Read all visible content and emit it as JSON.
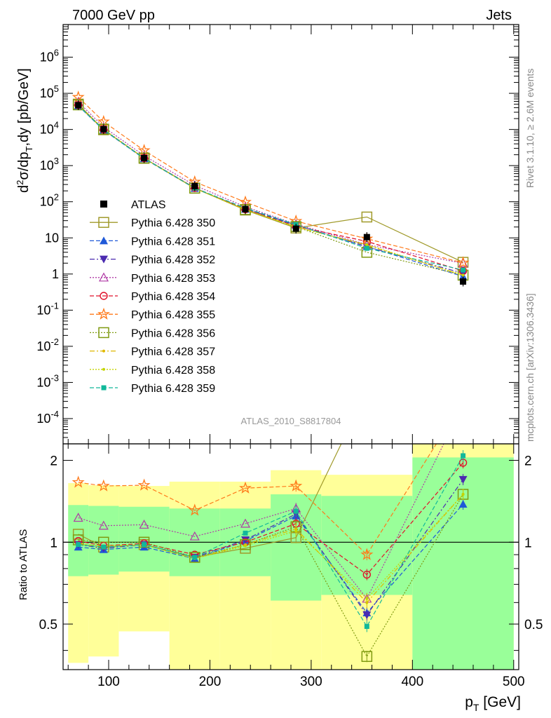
{
  "header": {
    "left": "7000 GeV pp",
    "right": "Jets"
  },
  "side_labels": {
    "top": "Rivet 3.1.10, ≥ 2.6M events",
    "bottom": "mcplots.cern.ch [arXiv:1306.3436]"
  },
  "analysis_tag": "ATLAS_2010_S8817804",
  "chart_data": [
    {
      "type": "line",
      "panel": "main",
      "ylabel": "d²σ/dp_T,dy [pb/GeV]",
      "yscale": "log",
      "ylim": [
        2e-05,
        8000000
      ],
      "xlim": [
        55,
        505
      ],
      "y_tick_labels": [
        "10^6",
        "10^5",
        "10^4",
        "10^3",
        "10^2",
        "10",
        "1",
        "10^-1",
        "10^-2",
        "10^-3",
        "10^-4"
      ],
      "x": [
        70,
        95,
        135,
        185,
        235,
        285,
        355,
        450
      ],
      "data": {
        "name": "ATLAS",
        "values": [
          47000,
          10200,
          1620,
          270,
          62,
          18,
          10.5,
          0.62
        ]
      },
      "series": [
        {
          "name": "Pythia 6.428 350",
          "color": "#a09a2a",
          "style": "solid",
          "marker": "open-square",
          "ratio": [
            1.07,
            0.96,
            0.98,
            0.88,
            0.95,
            1.04,
            3.6,
            3.4
          ]
        },
        {
          "name": "Pythia 6.428 351",
          "color": "#1f59d8",
          "style": "dashed",
          "marker": "triangle-up",
          "ratio": [
            0.96,
            0.94,
            0.96,
            0.87,
            1.01,
            1.25,
            0.55,
            1.38
          ]
        },
        {
          "name": "Pythia 6.428 352",
          "color": "#4b2bb0",
          "style": "dashdot",
          "marker": "triangle-down",
          "ratio": [
            0.98,
            0.95,
            0.98,
            0.88,
            1.02,
            1.27,
            0.54,
            1.7
          ]
        },
        {
          "name": "Pythia 6.428 353",
          "color": "#b03aa5",
          "style": "dotted",
          "marker": "open-triangle",
          "ratio": [
            1.23,
            1.15,
            1.16,
            1.05,
            1.17,
            1.33,
            0.62,
            3.2
          ]
        },
        {
          "name": "Pythia 6.428 354",
          "color": "#e0102a",
          "style": "dashed",
          "marker": "open-circle",
          "ratio": [
            1.01,
            0.97,
            0.99,
            0.9,
            1.0,
            1.17,
            0.76,
            1.96
          ]
        },
        {
          "name": "Pythia 6.428 355",
          "color": "#ff7a1a",
          "style": "dashed",
          "marker": "open-star",
          "ratio": [
            1.66,
            1.61,
            1.62,
            1.31,
            1.58,
            1.61,
            0.9,
            3.3
          ]
        },
        {
          "name": "Pythia 6.428 356",
          "color": "#7f9a10",
          "style": "dotted",
          "marker": "open-square",
          "ratio": [
            1.02,
            1.0,
            1.0,
            0.88,
            0.98,
            1.14,
            0.38,
            1.5
          ]
        },
        {
          "name": "Pythia 6.428 357",
          "color": "#e0b800",
          "style": "dashdot",
          "marker": "small-dot",
          "ratio": [
            0.99,
            0.96,
            0.98,
            0.87,
            0.98,
            1.12,
            0.6,
            1.5
          ]
        },
        {
          "name": "Pythia 6.428 358",
          "color": "#c4d400",
          "style": "dotted",
          "marker": "small-dot",
          "ratio": [
            0.98,
            0.97,
            0.98,
            0.87,
            0.97,
            1.1,
            0.62,
            1.5
          ]
        },
        {
          "name": "Pythia 6.428 359",
          "color": "#11b89a",
          "style": "dashed",
          "marker": "filled-square",
          "ratio": [
            0.98,
            0.96,
            0.98,
            0.88,
            1.08,
            1.3,
            0.49,
            2.08
          ]
        }
      ]
    },
    {
      "type": "line",
      "panel": "ratio",
      "ylabel": "Ratio to ATLAS",
      "yscale": "log",
      "ylim": [
        0.34,
        2.3
      ],
      "xlim": [
        55,
        505
      ],
      "xlabel": "p_T [GeV]",
      "x_ticks": [
        100,
        200,
        300,
        400,
        500
      ],
      "y_ticks": [
        0.5,
        1,
        2
      ],
      "reference": 1,
      "bands": [
        {
          "x": [
            60,
            80
          ],
          "green": [
            0.75,
            1.37
          ],
          "yellow": [
            0.36,
            1.65
          ]
        },
        {
          "x": [
            80,
            110
          ],
          "green": [
            0.76,
            1.36
          ],
          "yellow": [
            0.38,
            1.62
          ]
        },
        {
          "x": [
            110,
            160
          ],
          "green": [
            0.78,
            1.35
          ],
          "yellow": [
            0.47,
            1.61
          ]
        },
        {
          "x": [
            160,
            210
          ],
          "green": [
            0.75,
            1.33
          ],
          "yellow": [
            0.34,
            1.67
          ]
        },
        {
          "x": [
            210,
            260
          ],
          "green": [
            0.75,
            1.33
          ],
          "yellow": [
            0.34,
            1.67
          ]
        },
        {
          "x": [
            260,
            310
          ],
          "green": [
            0.61,
            1.5
          ],
          "yellow": [
            0.34,
            1.84
          ]
        },
        {
          "x": [
            310,
            400
          ],
          "green": [
            0.64,
            1.48
          ],
          "yellow": [
            0.34,
            1.77
          ]
        },
        {
          "x": [
            400,
            500
          ],
          "green": [
            0.34,
            2.05
          ],
          "yellow": [
            0.34,
            2.3
          ]
        }
      ]
    }
  ]
}
